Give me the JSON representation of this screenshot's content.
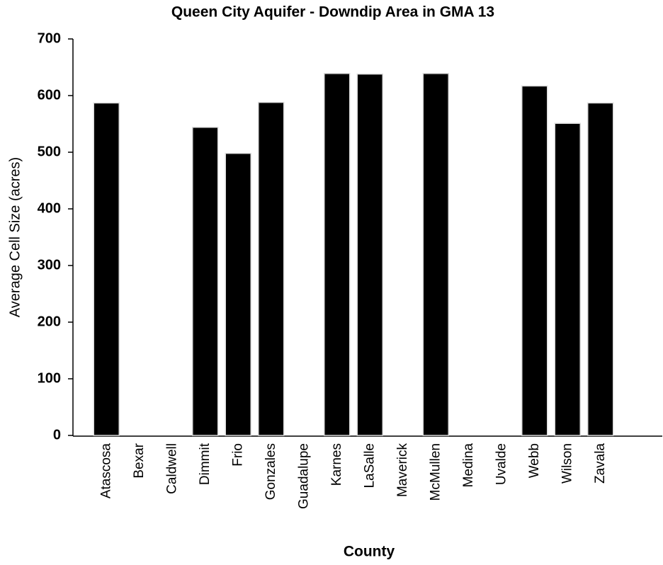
{
  "chart_data": {
    "type": "bar",
    "title": "Queen City Aquifer - Downdip Area in GMA 13",
    "x_label": "County",
    "y_label": "Average Cell Size (acres)",
    "categories": [
      "Atascosa",
      "Bexar",
      "Caldwell",
      "Dimmit",
      "Frio",
      "Gonzales",
      "Guadalupe",
      "Karnes",
      "LaSalle",
      "Maverick",
      "McMullen",
      "Medina",
      "Uvalde",
      "Webb",
      "Wilson",
      "Zavala"
    ],
    "values": [
      587,
      null,
      null,
      544,
      498,
      588,
      null,
      639,
      638,
      null,
      639,
      null,
      null,
      617,
      551,
      587
    ],
    "color": "#000000",
    "ylim": [
      0,
      700
    ],
    "yticks": [
      0,
      100,
      200,
      300,
      400,
      500,
      600,
      700
    ],
    "grid": false
  }
}
